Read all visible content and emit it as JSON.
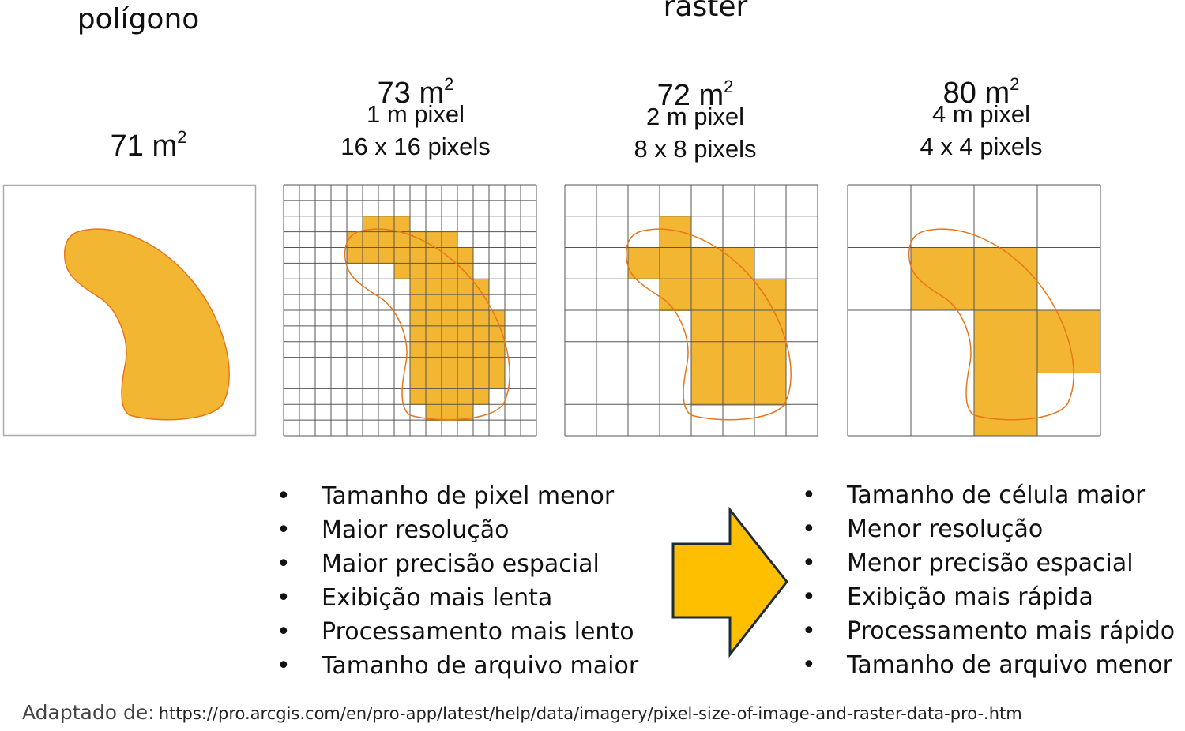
{
  "headings": {
    "polygon": "polígono",
    "raster": "raster"
  },
  "panels": [
    {
      "area": "71 m",
      "exp": "2",
      "line1": "",
      "line2": ""
    },
    {
      "area": "73 m",
      "exp": "2",
      "line1": "1 m pixel",
      "line2": "16 x 16 pixels"
    },
    {
      "area": "72 m",
      "exp": "2",
      "line1": "2 m pixel",
      "line2": "8 x 8 pixels"
    },
    {
      "area": "80 m",
      "exp": "2",
      "line1": "4 m pixel",
      "line2": "4 x 4 pixels"
    }
  ],
  "left_list": [
    "Tamanho de pixel menor",
    "Maior resolução",
    "Maior precisão espacial",
    "Exibição mais lenta",
    "Processamento mais lento",
    "Tamanho de arquivo maior"
  ],
  "right_list": [
    "Tamanho de célula maior",
    "Menor resolução",
    "Menor precisão espacial",
    "Exibição mais rápida",
    "Processamento mais rápido",
    "Tamanho de arquivo menor"
  ],
  "credit": {
    "lead": "Adaptado de:",
    "url": "https://pro.arcgis.com/en/pro-app/latest/help/data/imagery/pixel-size-of-image-and-raster-data-pro-.htm"
  },
  "colors": {
    "fill": "#F2B632",
    "outline": "#E8751A",
    "arrow": "#FDBF00",
    "grid": "#555555",
    "frame": "#aaaaaa"
  },
  "icons": {
    "arrow": "right-arrow-icon"
  }
}
